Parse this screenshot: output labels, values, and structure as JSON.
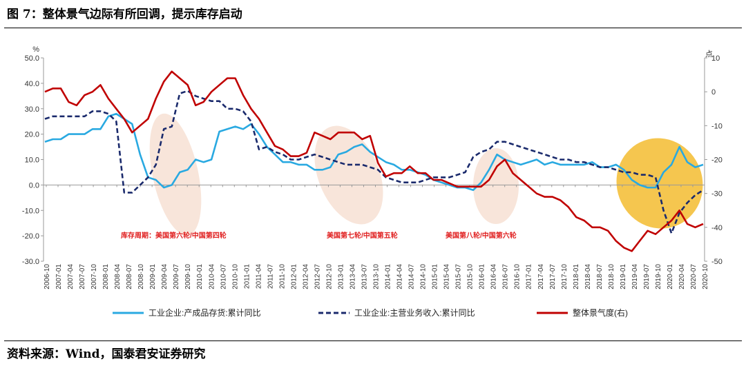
{
  "header": {
    "title": "图 7：整体景气边际有所回调，提示库存启动"
  },
  "footer": {
    "source": "资料来源：Wind，国泰君安证券研究"
  },
  "chart_data": {
    "type": "line",
    "left_unit": "%",
    "right_unit": "点",
    "ylim_left": [
      -30,
      50
    ],
    "ylim_right": [
      -50,
      10
    ],
    "yticks_left": [
      "50.0",
      "40.0",
      "30.0",
      "20.0",
      "10.0",
      "0.0",
      "-10.0",
      "-20.0",
      "-30.0"
    ],
    "yticks_right": [
      "10",
      "0",
      "-10",
      "-20",
      "-30",
      "-40",
      "-50"
    ],
    "x_labels": [
      "2006-10",
      "2007-01",
      "2007-04",
      "2007-07",
      "2007-10",
      "2008-01",
      "2008-04",
      "2008-07",
      "2008-10",
      "2009-01",
      "2009-04",
      "2009-07",
      "2009-10",
      "2010-01",
      "2010-04",
      "2010-07",
      "2010-10",
      "2011-01",
      "2011-04",
      "2011-07",
      "2011-10",
      "2012-01",
      "2012-04",
      "2012-07",
      "2012-10",
      "2013-01",
      "2013-04",
      "2013-07",
      "2013-10",
      "2014-01",
      "2014-04",
      "2014-07",
      "2014-10",
      "2015-01",
      "2015-04",
      "2015-07",
      "2015-10",
      "2016-01",
      "2016-04",
      "2016-07",
      "2016-10",
      "2017-01",
      "2017-04",
      "2017-07",
      "2017-10",
      "2018-01",
      "2018-04",
      "2018-07",
      "2018-10",
      "2019-01",
      "2019-04",
      "2019-07",
      "2019-10",
      "2020-01",
      "2020-04",
      "2020-07",
      "2020-10"
    ],
    "series": [
      {
        "name": "工业企业:产成品存货:累计同比",
        "axis": "left",
        "color": "#29a9e1",
        "style": "solid",
        "values": [
          17,
          18,
          18,
          20,
          20,
          20,
          22,
          22,
          27,
          28,
          26,
          24,
          12,
          3,
          2,
          -1,
          0,
          5,
          6,
          10,
          9,
          10,
          21,
          22,
          23,
          22,
          24,
          20,
          15,
          12,
          9,
          9,
          8,
          8,
          6,
          6,
          7,
          12,
          13,
          15,
          16,
          13,
          11,
          9,
          8,
          6,
          6,
          5,
          4,
          2,
          1,
          0,
          -1,
          -1,
          -2,
          1,
          6,
          12,
          10,
          9,
          8,
          9,
          10,
          8,
          9,
          8,
          8,
          8,
          8,
          9,
          7,
          7,
          8,
          6,
          2,
          0,
          -1,
          -1,
          5,
          8,
          15,
          9,
          7,
          8
        ]
      },
      {
        "name": "工业企业:主营业务收入:累计同比",
        "axis": "left",
        "color": "#1a2a6c",
        "style": "dashed",
        "values": [
          26,
          27,
          27,
          27,
          27,
          27,
          29,
          29,
          28,
          25,
          -3,
          -3,
          0,
          3,
          8,
          22,
          23,
          36,
          37,
          35,
          34,
          33,
          33,
          30,
          30,
          29,
          25,
          14,
          15,
          13,
          12,
          10,
          10,
          11,
          12,
          11,
          10,
          9,
          8,
          8,
          8,
          7,
          6,
          3,
          2,
          1,
          1,
          1,
          2,
          3,
          3,
          3,
          4,
          5,
          11,
          13,
          14,
          17,
          17,
          16,
          15,
          14,
          13,
          12,
          11,
          10,
          10,
          9,
          9,
          8,
          7,
          7,
          6,
          5,
          5,
          4,
          4,
          3,
          -10,
          -19,
          -11,
          -7,
          -4,
          -2
        ]
      },
      {
        "name": "整体景气度(右)",
        "axis": "right",
        "color": "#c00000",
        "style": "solid",
        "values": [
          0,
          1,
          1,
          -3,
          -4,
          -1,
          0,
          2,
          -2,
          -5,
          -8,
          -12,
          -10,
          -8,
          -2,
          3,
          6,
          4,
          2,
          -4,
          -3,
          0,
          2,
          4,
          4,
          -1,
          -5,
          -8,
          -12,
          -16,
          -17,
          -19,
          -19,
          -18,
          -12,
          -13,
          -14,
          -12,
          -12,
          -12,
          -14,
          -13,
          -21,
          -25,
          -24,
          -24,
          -22,
          -24,
          -24,
          -26,
          -26,
          -27,
          -28,
          -28,
          -28,
          -28,
          -26,
          -22,
          -20,
          -24,
          -26,
          -28,
          -30,
          -31,
          -31,
          -32,
          -34,
          -37,
          -38,
          -40,
          -40,
          -41,
          -44,
          -46,
          -47,
          -44,
          -41,
          -42,
          -40,
          -38,
          -35,
          -39,
          -40,
          -39
        ]
      }
    ],
    "annotations": [
      "库存周期：美国第六轮/中国第四轮",
      "美国第七轮/中国第五轮",
      "美国第八轮/中国第六轮"
    ],
    "legend_position": "bottom"
  }
}
